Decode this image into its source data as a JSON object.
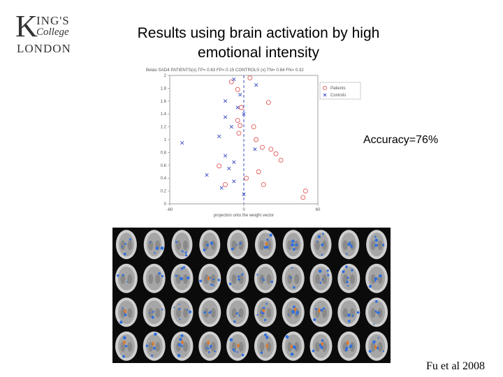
{
  "logo": {
    "line1": "K",
    "line1b": "ING'S",
    "line2": "College",
    "line3": "LONDON"
  },
  "slide": {
    "title_line1": "Results using brain activation by high",
    "title_line2": "emotional intensity",
    "accuracy": "Accuracy=76%",
    "citation": "Fu et al 2008"
  },
  "chart_data": {
    "type": "scatter",
    "header": "Betas SAD4   PATIENTS(o)   TP= 0.63   FP= 0.15   CONTROLS (x)   TN= 0.84   FN= 0.32",
    "xlabel": "projection onto the weight vector",
    "xlim": [
      -60,
      60
    ],
    "ylim": [
      0,
      2
    ],
    "xticks": [
      "-60",
      "0",
      "60"
    ],
    "yticks": [
      "0",
      "0.2",
      "0.4",
      "0.6",
      "0.8",
      "1",
      "1.2",
      "1.4",
      "1.6",
      "1.8",
      "2"
    ],
    "threshold_x": 0,
    "legend_position": "top-right",
    "colors": {
      "patients": "#e05a5a",
      "controls": "#3b4dbf",
      "threshold": "#3b4dbf"
    },
    "series": [
      {
        "name": "Patients",
        "marker": "circle",
        "points": [
          [
            5,
            1.96
          ],
          [
            -10,
            1.9
          ],
          [
            -5,
            1.78
          ],
          [
            20,
            1.58
          ],
          [
            -2,
            1.5
          ],
          [
            -5,
            1.3
          ],
          [
            -3,
            1.22
          ],
          [
            8,
            1.2
          ],
          [
            -4,
            1.1
          ],
          [
            10,
            1.0
          ],
          [
            15,
            0.88
          ],
          [
            22,
            0.85
          ],
          [
            26,
            0.78
          ],
          [
            30,
            0.68
          ],
          [
            -20,
            0.59
          ],
          [
            12,
            0.5
          ],
          [
            2,
            0.4
          ],
          [
            16,
            0.3
          ],
          [
            -15,
            0.3
          ],
          [
            50,
            0.2
          ],
          [
            48,
            0.1
          ]
        ]
      },
      {
        "name": "Controls",
        "marker": "x",
        "points": [
          [
            -8,
            1.94
          ],
          [
            10,
            1.85
          ],
          [
            -3,
            1.7
          ],
          [
            -15,
            1.6
          ],
          [
            -5,
            1.5
          ],
          [
            0,
            1.4
          ],
          [
            -15,
            1.35
          ],
          [
            -10,
            1.2
          ],
          [
            -20,
            1.05
          ],
          [
            -50,
            0.95
          ],
          [
            9,
            0.85
          ],
          [
            -15,
            0.75
          ],
          [
            -8,
            0.65
          ],
          [
            -12,
            0.55
          ],
          [
            -30,
            0.45
          ],
          [
            -8,
            0.35
          ],
          [
            -18,
            0.25
          ],
          [
            0,
            0.15
          ]
        ]
      }
    ]
  }
}
